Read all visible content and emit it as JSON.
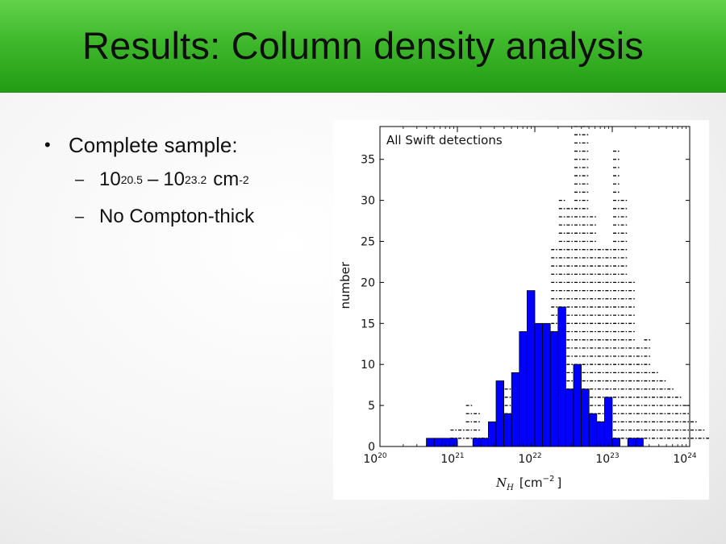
{
  "slide": {
    "title": "Results: Column density analysis",
    "bullet_1": "Complete sample:",
    "sub_1": {
      "base_a": "10",
      "exp_a": "20.5",
      "dash": "–",
      "base_b": "10",
      "exp_b": "23.2",
      "unit": "cm",
      "unit_exp": "-2"
    },
    "sub_2": "No Compton-thick"
  },
  "chart_data": {
    "type": "bar",
    "annotation": "All Swift detections",
    "ylabel": "number",
    "xlabel_symbol": "N",
    "xlabel_subscript": "H",
    "xlabel_unit": "[cm",
    "xlabel_unit_exp": "−2",
    "xlabel_unit_close": "]",
    "x_scale": "log",
    "xlim": [
      1e+20,
      1e+24
    ],
    "ylim": [
      0,
      39
    ],
    "x_ticks": [
      {
        "base": "10",
        "exp": "20",
        "value": 20
      },
      {
        "base": "10",
        "exp": "21",
        "value": 21
      },
      {
        "base": "10",
        "exp": "22",
        "value": 22
      },
      {
        "base": "10",
        "exp": "23",
        "value": 23
      },
      {
        "base": "10",
        "exp": "24",
        "value": 24
      }
    ],
    "y_ticks": [
      0,
      5,
      10,
      15,
      20,
      25,
      30,
      35
    ],
    "bin_width_dex": 0.1,
    "series": [
      {
        "style": "dashed-hatch outline",
        "bins_start_log": 20.0,
        "counts": [
          0,
          0,
          0.5,
          0,
          0,
          0.5,
          0,
          0,
          0,
          2,
          2.5,
          5,
          4.5,
          1,
          1.5,
          4,
          7,
          7.5,
          8,
          9,
          12.5,
          14,
          24,
          30,
          29,
          40,
          39,
          28,
          24,
          24,
          36,
          30,
          20,
          12,
          13.5,
          9,
          8.5,
          7,
          6,
          5,
          3,
          2,
          1.5,
          1,
          0,
          0,
          0,
          0,
          0,
          0
        ]
      },
      {
        "style": "filled",
        "color": "#0000ff",
        "bins_start_log": 20.0,
        "counts": [
          0,
          0,
          0,
          0,
          0,
          0,
          1,
          1,
          1,
          1,
          0,
          0,
          1,
          1,
          3,
          8,
          4,
          9,
          14,
          19,
          15,
          15,
          14,
          17,
          7,
          10,
          7,
          4,
          3,
          6,
          1,
          0,
          1,
          1,
          0,
          0,
          0,
          0,
          0,
          0
        ]
      }
    ]
  }
}
